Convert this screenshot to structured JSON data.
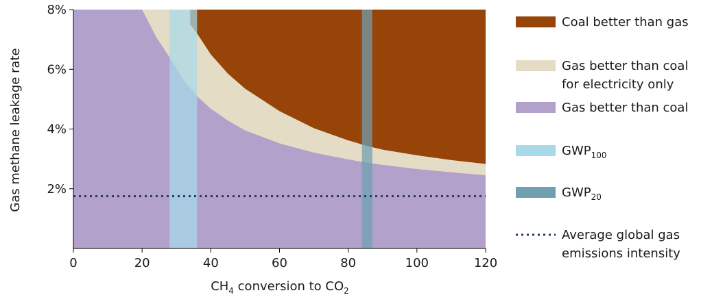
{
  "chart_data": {
    "type": "area",
    "xlabel": "CH₄ conversion to CO₂",
    "ylabel": "Gas methane leakage rate",
    "xlim": [
      0,
      120
    ],
    "ylim": [
      0,
      8
    ],
    "x_ticks": [
      "0",
      "20",
      "40",
      "60",
      "80",
      "100",
      "120"
    ],
    "y_ticks": [
      "2%",
      "4%",
      "6%",
      "8%"
    ],
    "y_tick_values": [
      2,
      4,
      6,
      8
    ],
    "grid": false,
    "legend_placement": "right",
    "regions": [
      {
        "name": "Coal better than gas",
        "color": "#964408",
        "boundary_x": [
          34,
          36,
          40,
          45,
          50,
          60,
          70,
          80,
          85,
          90,
          100,
          110,
          120
        ],
        "boundary_y": [
          7.5,
          7.2,
          6.5,
          5.85,
          5.35,
          4.6,
          4.03,
          3.62,
          3.45,
          3.31,
          3.12,
          2.96,
          2.83
        ]
      },
      {
        "name": "Gas better than coal for electricity only",
        "color": "#e4dcc4",
        "boundary_x": [
          20,
          24,
          28,
          32,
          36,
          40,
          45,
          50,
          60,
          70,
          80,
          85,
          90,
          100,
          110,
          120
        ],
        "boundary_y": [
          8,
          7.1,
          6.4,
          5.65,
          5.1,
          4.68,
          4.28,
          3.95,
          3.52,
          3.21,
          2.98,
          2.88,
          2.8,
          2.66,
          2.55,
          2.45
        ]
      },
      {
        "name": "Gas better than coal",
        "color": "#b1a1cb"
      }
    ],
    "bands": [
      {
        "name": "GWP",
        "subscript": "100",
        "x_range": [
          28,
          36
        ],
        "color": "#a8d9e9"
      },
      {
        "name": "GWP",
        "subscript": "20",
        "x_range": [
          84,
          87
        ],
        "color": "#6f9fb1"
      }
    ],
    "reference_lines": [
      {
        "name": "Average global gas emissions intensity",
        "name_lines": [
          "Average global gas",
          "emissions intensity"
        ],
        "y": 1.75,
        "style": "dotted",
        "color": "#1f3864"
      }
    ],
    "legend": [
      {
        "kind": "swatch",
        "color": "#964408",
        "lines": [
          "Coal better than gas"
        ]
      },
      {
        "kind": "swatch",
        "color": "#e4dcc4",
        "lines": [
          "Gas better than coal",
          "for electricity only"
        ]
      },
      {
        "kind": "swatch",
        "color": "#b1a1cb",
        "lines": [
          "Gas better than coal"
        ]
      },
      {
        "kind": "swatch",
        "color": "#a8d9e9",
        "label": "GWP",
        "subscript": "100"
      },
      {
        "kind": "swatch",
        "color": "#6f9fb1",
        "label": "GWP",
        "subscript": "20"
      },
      {
        "kind": "dotted",
        "color": "#1f3864",
        "lines": [
          "Average global gas",
          "emissions intensity"
        ]
      }
    ]
  }
}
